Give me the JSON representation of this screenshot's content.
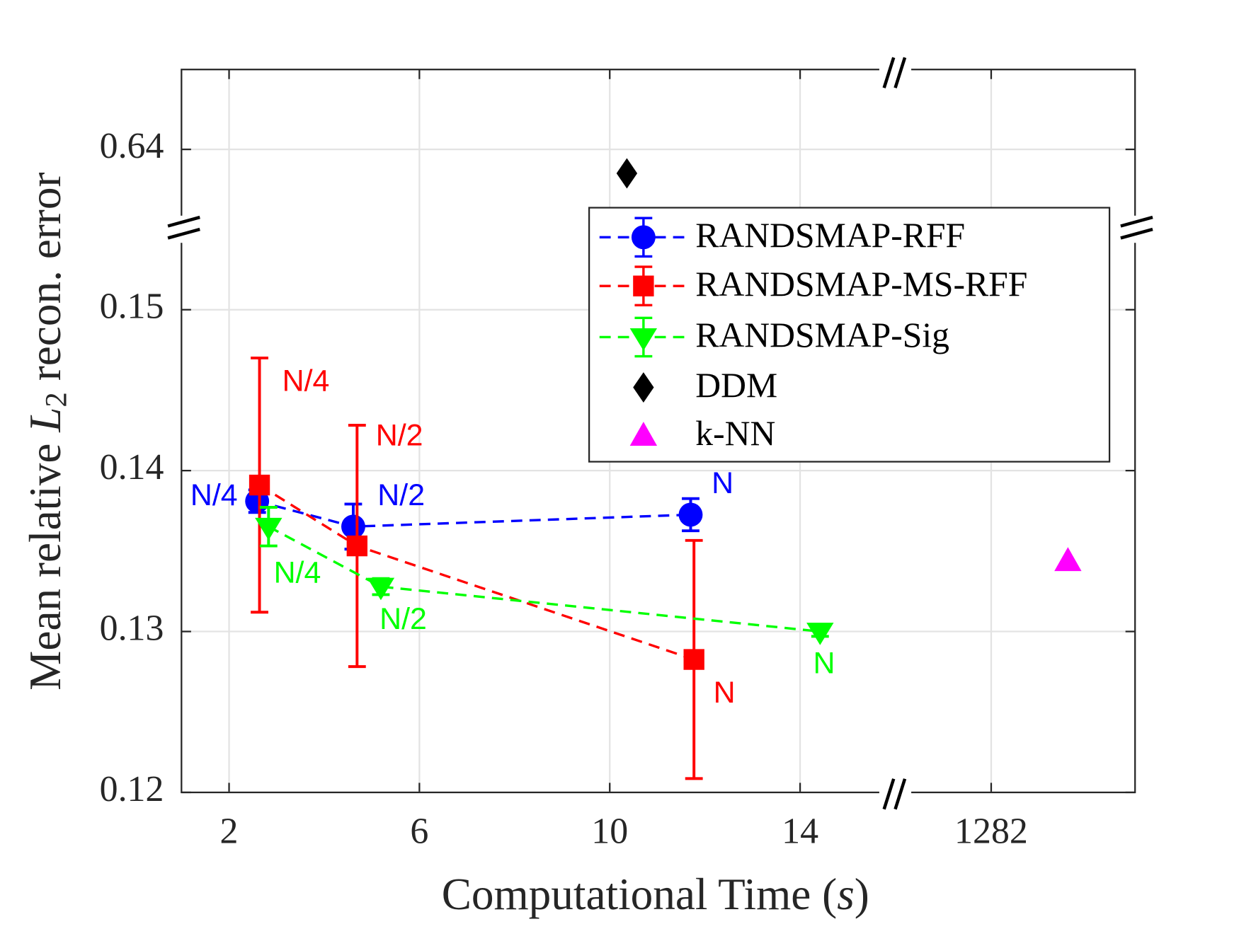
{
  "chart_data": {
    "type": "scatter",
    "x_label": {
      "text": "Computational Time (",
      "var": "s",
      "end": ")"
    },
    "y_label": {
      "text": "Mean relative ",
      "var": "L",
      "sub": "2",
      "end": " recon. error"
    },
    "x_segments": [
      {
        "xlim": [
          1,
          16
        ]
      },
      {
        "xlim": [
          1280,
          1285
        ]
      }
    ],
    "y_segments": [
      {
        "ylim": [
          0.12,
          0.155
        ]
      },
      {
        "ylim": [
          0.635,
          0.645
        ]
      }
    ],
    "xticks": [
      2,
      6,
      10,
      14,
      1282
    ],
    "yticks": [
      0.12,
      0.13,
      0.14,
      0.15,
      0.64
    ],
    "grid": true,
    "series": [
      {
        "name": "RANDSMAP-RFF",
        "color": "#0000ff",
        "marker": "circle",
        "line": "dashed",
        "x": [
          2.59,
          4.61,
          11.7
        ],
        "values": [
          0.1381,
          0.13652,
          0.13726
        ],
        "errors": [
          0.0007,
          0.0014,
          0.001
        ],
        "point_labels": [
          "N/4",
          "N/2",
          "N"
        ]
      },
      {
        "name": "RANDSMAP-MS-RFF",
        "color": "#ff0000",
        "marker": "square",
        "line": "dashed",
        "x": [
          2.64,
          4.69,
          11.77
        ],
        "values": [
          0.1391,
          0.13532,
          0.12826
        ],
        "errors": [
          0.0079,
          0.0075,
          0.0074
        ],
        "point_labels": [
          "N/4",
          "N/2",
          "N"
        ]
      },
      {
        "name": "RANDSMAP-Sig",
        "color": "#00ff00",
        "marker": "triangle-down",
        "line": "dashed",
        "x": [
          2.83,
          5.19,
          14.42
        ],
        "values": [
          0.13652,
          0.13279,
          0.13
        ],
        "errors": [
          0.0012,
          0.0005,
          0.0003
        ],
        "point_labels": [
          "N/4",
          "N/2",
          "N"
        ]
      },
      {
        "name": "DDM",
        "color": "#000000",
        "marker": "diamond",
        "x": [
          10.36
        ],
        "values": [
          0.6385
        ]
      },
      {
        "name": "k-NN",
        "color": "#ff00ff",
        "marker": "triangle-up",
        "x": [
          1283.6
        ],
        "values": [
          0.1344
        ]
      }
    ]
  }
}
